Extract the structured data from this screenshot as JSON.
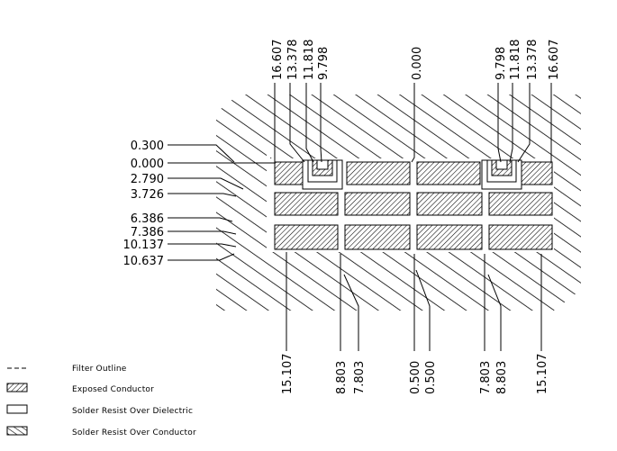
{
  "top_labels": {
    "left": [
      "16.607",
      "13.378",
      "11.818",
      "9.798"
    ],
    "center": "0.000",
    "right": [
      "9.798",
      "11.818",
      "13.378",
      "16.607"
    ]
  },
  "left_labels": [
    "0.300",
    "0.000",
    "2.790",
    "3.726",
    "6.386",
    "7.386",
    "10.137",
    "10.637"
  ],
  "bottom_labels": {
    "left_outer": "15.107",
    "left_pair": [
      "8.803",
      "7.803"
    ],
    "center_pair": [
      "0.500",
      "0.500"
    ],
    "right_pair": [
      "7.803",
      "8.803"
    ],
    "right_outer": "15.107"
  },
  "legend": [
    {
      "icon": "dashed-line-icon",
      "label": "Filter Outline"
    },
    {
      "icon": "dense-hatch-icon",
      "label": "Exposed Conductor"
    },
    {
      "icon": "empty-box-icon",
      "label": "Solder Resist Over Dielectric"
    },
    {
      "icon": "sparse-hatch-icon",
      "label": "Solder Resist Over Conductor"
    }
  ]
}
